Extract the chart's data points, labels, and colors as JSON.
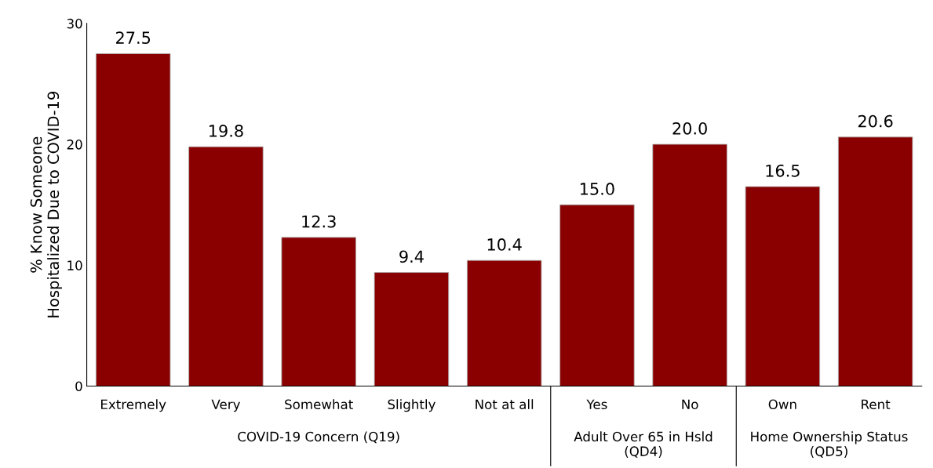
{
  "chart_data": {
    "type": "bar",
    "categories": [
      "Extremely",
      "Very",
      "Somewhat",
      "Slightly",
      "Not at all",
      "Yes",
      "No",
      "Own",
      "Rent"
    ],
    "values": [
      27.5,
      19.8,
      12.3,
      9.4,
      10.4,
      15.0,
      20.0,
      16.5,
      20.6
    ],
    "value_labels": [
      "27.5",
      "19.8",
      "12.3",
      "9.4",
      "10.4",
      "15.0",
      "20.0",
      "16.5",
      "20.6"
    ],
    "color": "#8a0000",
    "ylabel": "% Know Someone\nHospitalized Due to COVID-19",
    "ylim": [
      0,
      30
    ],
    "yticks": [
      0,
      10,
      20,
      30
    ],
    "grid": false,
    "annotations": [
      "COVID-19 Concern (Q19)",
      "Adult Over 65 in Hsld\n(QD4)",
      "Home Ownership Status\n(QD5)"
    ]
  }
}
